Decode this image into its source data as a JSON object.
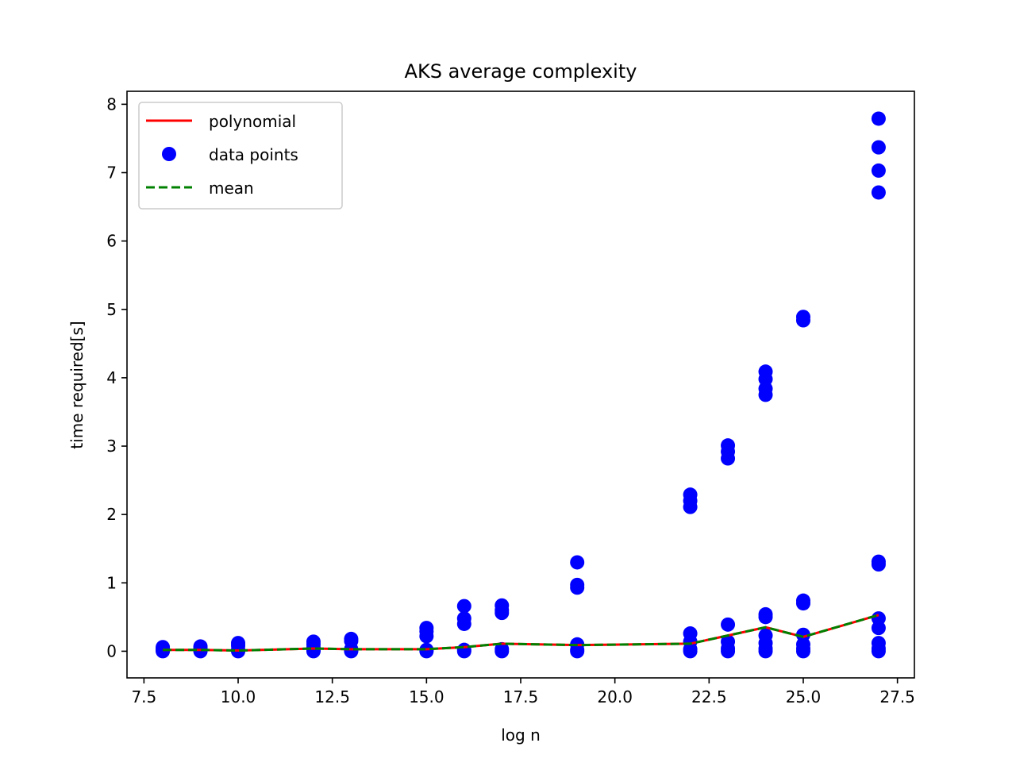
{
  "chart_data": {
    "type": "scatter",
    "title": "AKS average complexity",
    "xlabel": "log n",
    "ylabel": "time required[s]",
    "xlim": [
      7.05,
      27.95
    ],
    "ylim": [
      -0.39,
      8.19
    ],
    "xticks": [
      7.5,
      10.0,
      12.5,
      15.0,
      17.5,
      20.0,
      22.5,
      25.0,
      27.5
    ],
    "xtick_labels": [
      "7.5",
      "10.0",
      "12.5",
      "15.0",
      "17.5",
      "20.0",
      "22.5",
      "25.0",
      "27.5"
    ],
    "yticks": [
      0,
      1,
      2,
      3,
      4,
      5,
      6,
      7,
      8
    ],
    "ytick_labels": [
      "0",
      "1",
      "2",
      "3",
      "4",
      "5",
      "6",
      "7",
      "8"
    ],
    "grid": false,
    "legend": {
      "position": "upper-left",
      "entries": [
        {
          "label": "polynomial",
          "style": "line",
          "color": "#ff0000"
        },
        {
          "label": "data points",
          "style": "marker",
          "color": "#0000ff"
        },
        {
          "label": "mean",
          "style": "dashed",
          "color": "#008000"
        }
      ]
    },
    "series": [
      {
        "name": "polynomial",
        "kind": "line",
        "color": "#ff0000",
        "x": [
          8,
          9,
          10,
          12,
          13,
          15,
          16,
          17,
          19,
          22,
          23,
          24,
          25,
          27
        ],
        "y": [
          0.02,
          0.02,
          0.01,
          0.04,
          0.03,
          0.03,
          0.06,
          0.11,
          0.09,
          0.11,
          0.23,
          0.35,
          0.21,
          0.53
        ]
      },
      {
        "name": "data points",
        "kind": "scatter",
        "color": "#0000ff",
        "points": [
          [
            8,
            0.0
          ],
          [
            8,
            0.01
          ],
          [
            8,
            0.02
          ],
          [
            8,
            0.04
          ],
          [
            8,
            0.06
          ],
          [
            9,
            0.0
          ],
          [
            9,
            0.01
          ],
          [
            9,
            0.02
          ],
          [
            9,
            0.05
          ],
          [
            9,
            0.07
          ],
          [
            10,
            0.0
          ],
          [
            10,
            0.01
          ],
          [
            10,
            0.02
          ],
          [
            10,
            0.08
          ],
          [
            10,
            0.12
          ],
          [
            12,
            0.0
          ],
          [
            12,
            0.02
          ],
          [
            12,
            0.05
          ],
          [
            12,
            0.1
          ],
          [
            12,
            0.14
          ],
          [
            13,
            0.0
          ],
          [
            13,
            0.01
          ],
          [
            13,
            0.03
          ],
          [
            13,
            0.15
          ],
          [
            13,
            0.18
          ],
          [
            15,
            0.0
          ],
          [
            15,
            0.02
          ],
          [
            15,
            0.22
          ],
          [
            15,
            0.29
          ],
          [
            15,
            0.34
          ],
          [
            16,
            0.0
          ],
          [
            16,
            0.02
          ],
          [
            16,
            0.4
          ],
          [
            16,
            0.48
          ],
          [
            16,
            0.66
          ],
          [
            17,
            0.0
          ],
          [
            17,
            0.03
          ],
          [
            17,
            0.56
          ],
          [
            17,
            0.6
          ],
          [
            17,
            0.67
          ],
          [
            19,
            0.0
          ],
          [
            19,
            0.02
          ],
          [
            19,
            0.1
          ],
          [
            19,
            0.93
          ],
          [
            19,
            0.97
          ],
          [
            19,
            1.3
          ],
          [
            22,
            0.0
          ],
          [
            22,
            0.03
          ],
          [
            22,
            0.14
          ],
          [
            22,
            0.26
          ],
          [
            22,
            2.11
          ],
          [
            22,
            2.2
          ],
          [
            22,
            2.29
          ],
          [
            23,
            0.0
          ],
          [
            23,
            0.04
          ],
          [
            23,
            0.14
          ],
          [
            23,
            0.39
          ],
          [
            23,
            2.82
          ],
          [
            23,
            2.92
          ],
          [
            23,
            3.01
          ],
          [
            24,
            0.0
          ],
          [
            24,
            0.04
          ],
          [
            24,
            0.12
          ],
          [
            24,
            0.23
          ],
          [
            24,
            0.5
          ],
          [
            24,
            0.54
          ],
          [
            24,
            3.75
          ],
          [
            24,
            3.84
          ],
          [
            24,
            3.98
          ],
          [
            24,
            4.09
          ],
          [
            25,
            0.0
          ],
          [
            25,
            0.04
          ],
          [
            25,
            0.1
          ],
          [
            25,
            0.24
          ],
          [
            25,
            0.7
          ],
          [
            25,
            0.74
          ],
          [
            25,
            4.84
          ],
          [
            25,
            4.89
          ],
          [
            27,
            0.0
          ],
          [
            27,
            0.04
          ],
          [
            27,
            0.12
          ],
          [
            27,
            0.34
          ],
          [
            27,
            0.48
          ],
          [
            27,
            1.27
          ],
          [
            27,
            1.31
          ],
          [
            27,
            6.71
          ],
          [
            27,
            7.03
          ],
          [
            27,
            7.37
          ],
          [
            27,
            7.79
          ]
        ]
      },
      {
        "name": "mean",
        "kind": "dashed-line",
        "color": "#008000",
        "x": [
          8,
          9,
          10,
          12,
          13,
          15,
          16,
          17,
          19,
          22,
          23,
          24,
          25,
          27
        ],
        "y": [
          0.02,
          0.02,
          0.01,
          0.04,
          0.03,
          0.03,
          0.06,
          0.11,
          0.09,
          0.11,
          0.23,
          0.35,
          0.21,
          0.53
        ]
      }
    ]
  }
}
